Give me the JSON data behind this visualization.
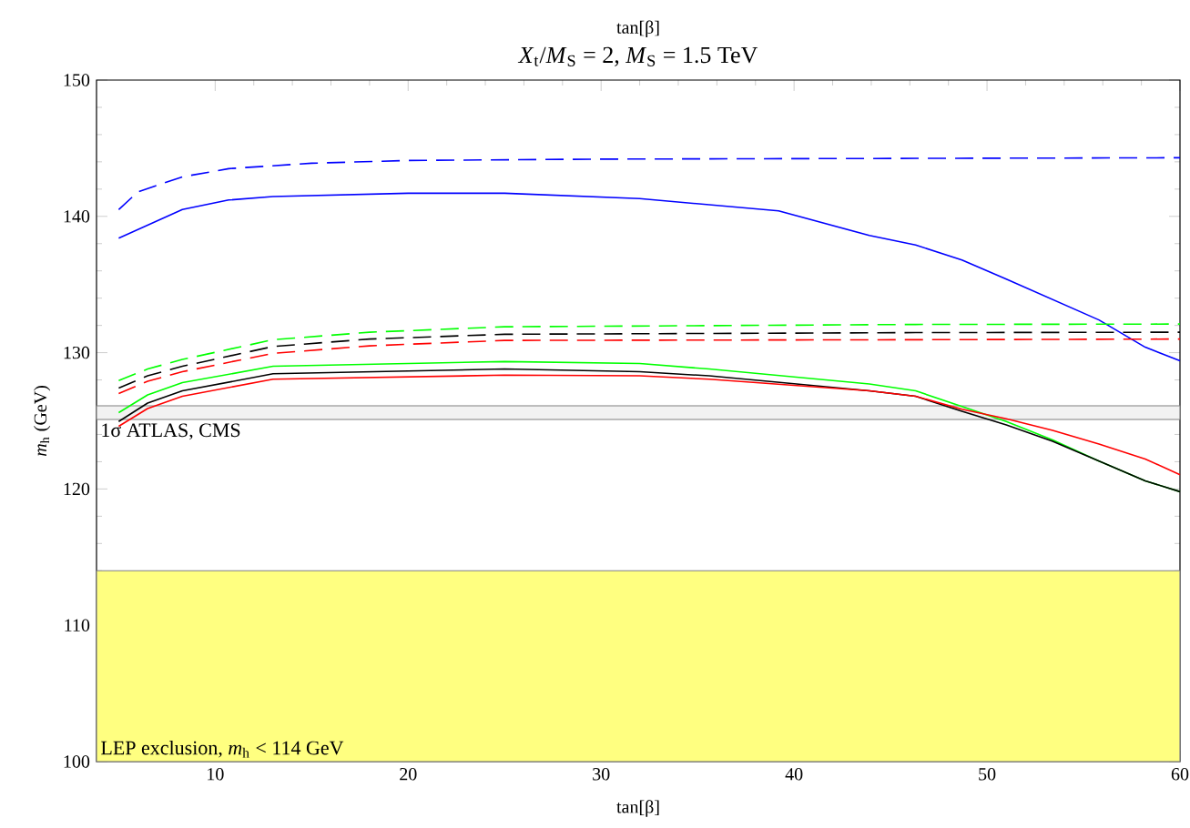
{
  "chart_data": {
    "type": "line",
    "title": "*X*$_{t}$/*M*$_{S}$ = 2, *M*$_{S}$ = 1.5 TeV",
    "xlabel": "tan[β]",
    "ylabel": "*m*$_{h}$ (GeV)",
    "annotations": [
      "tan[β]"
    ],
    "xlim": [
      3.85,
      60
    ],
    "ylim": [
      100,
      150
    ],
    "xticks": [
      10,
      20,
      30,
      40,
      50,
      60
    ],
    "yticks": [
      100,
      110,
      120,
      130,
      140,
      150
    ],
    "grid": false,
    "bands": [
      {
        "axis": "y",
        "from": 125.1,
        "to": 126.1,
        "label": "1σ ATLAS, CMS",
        "color": "#f2f2f2"
      },
      {
        "axis": "y",
        "from": 100,
        "to": 114,
        "label": "LEP exclusion, *m*$_{h}$ < 114 GeV",
        "color": "#ffff80"
      }
    ],
    "series": [
      {
        "color": "#0000ff",
        "line_style": "dashed",
        "x": [
          5,
          6,
          8.3,
          10.7,
          15,
          20,
          30,
          45,
          60
        ],
        "values": [
          140.5,
          141.8,
          142.9,
          143.5,
          143.9,
          144.1,
          144.2,
          144.25,
          144.3
        ]
      },
      {
        "color": "#0000ff",
        "line_style": "solid",
        "x": [
          5,
          8.3,
          10.7,
          13,
          20,
          25,
          32,
          39.2,
          43.9,
          46.3,
          48.7,
          51,
          53.4,
          55.8,
          58.2,
          60
        ],
        "values": [
          138.4,
          140.5,
          141.2,
          141.45,
          141.7,
          141.7,
          141.3,
          140.4,
          138.6,
          137.9,
          136.8,
          135.4,
          133.9,
          132.4,
          130.4,
          129.4
        ]
      },
      {
        "color": "#00ff00",
        "line_style": "dashed",
        "x": [
          5,
          6.5,
          8.3,
          13,
          18,
          25,
          46.3,
          60
        ],
        "values": [
          127.95,
          128.8,
          129.5,
          130.95,
          131.5,
          131.9,
          132.07,
          132.1
        ]
      },
      {
        "color": "#000000",
        "line_style": "dashed",
        "x": [
          5,
          6.5,
          8.3,
          13,
          18,
          25,
          46.3,
          60
        ],
        "values": [
          127.4,
          128.3,
          129.0,
          130.45,
          131.0,
          131.35,
          131.47,
          131.5
        ]
      },
      {
        "color": "#ff0000",
        "line_style": "dashed",
        "x": [
          5,
          6.5,
          8.3,
          13,
          18,
          25,
          46.3,
          60
        ],
        "values": [
          127.0,
          127.9,
          128.6,
          129.95,
          130.5,
          130.9,
          130.95,
          131.0
        ]
      },
      {
        "color": "#00ff00",
        "line_style": "solid",
        "x": [
          5,
          6.5,
          8.3,
          13,
          25,
          32,
          35.6,
          43.9,
          46.3,
          48.7,
          51,
          53.4,
          55.8,
          58.2,
          60
        ],
        "values": [
          125.6,
          126.9,
          127.8,
          129.0,
          129.35,
          129.2,
          128.8,
          127.7,
          127.2,
          126.05,
          124.95,
          123.6,
          122.05,
          120.6,
          119.8
        ]
      },
      {
        "color": "#000000",
        "line_style": "solid",
        "x": [
          5,
          6.5,
          8.3,
          13,
          25,
          32,
          35.6,
          43.9,
          46.3,
          48.7,
          51,
          53.4,
          55.8,
          58.2,
          60
        ],
        "values": [
          124.95,
          126.3,
          127.2,
          128.45,
          128.8,
          128.6,
          128.3,
          127.2,
          126.8,
          125.7,
          124.7,
          123.5,
          122.05,
          120.6,
          119.8
        ]
      },
      {
        "color": "#ff0000",
        "line_style": "solid",
        "x": [
          5,
          6.5,
          8.3,
          13,
          25,
          32,
          35.6,
          43.9,
          46.3,
          48.7,
          51,
          53.4,
          55.8,
          58.2,
          60
        ],
        "values": [
          124.6,
          125.9,
          126.8,
          128.05,
          128.35,
          128.3,
          128.05,
          127.2,
          126.8,
          125.85,
          125.15,
          124.3,
          123.3,
          122.2,
          121.05
        ]
      }
    ]
  }
}
